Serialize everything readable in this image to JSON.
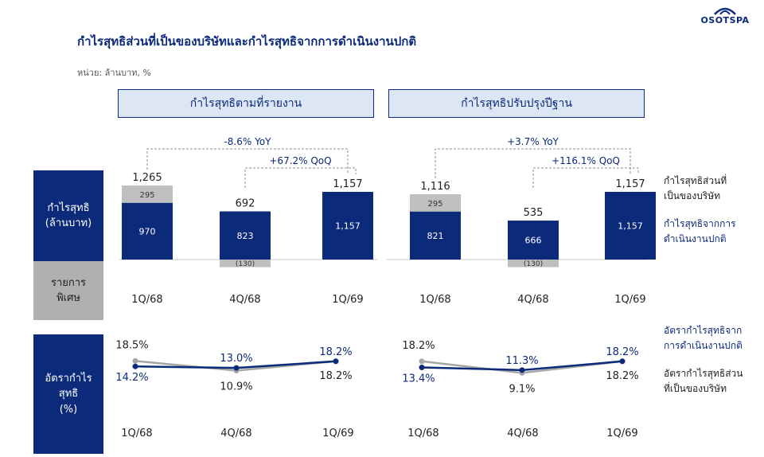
{
  "logo": "OSOTSPA",
  "title": "กำไรสุทธิส่วนที่เป็นของบริษัทและกำไรสุทธิจากการดำเนินงานปกติ",
  "unit_label": "หน่วย: ล้านบาท, %",
  "panels": {
    "reported": "กำไรสุทธิตามที่รายงาน",
    "normalized": "กำไรสุทธิปรับปรุงปีฐาน"
  },
  "side_labels": {
    "net_profit": "กำไรสุทธิ\n(ล้านบาท)",
    "special_items": "รายการ\nพิเศษ",
    "margin": "อัตรากำไร\nสุทธิ\n(%)"
  },
  "legend": {
    "net_profit_company": "กำไรสุทธิส่วนที่\nเป็นของบริษัท",
    "net_profit_operations": "กำไรสุทธิจากการ\nดำเนินงานปกติ",
    "margin_operations": "อัตรากำไรสุทธิจาก\nการดำเนินงานปกติ",
    "margin_company": "อัตรากำไรสุทธิส่วน\nที่เป็นของบริษัท"
  },
  "colors": {
    "navy": "#0b2a7a",
    "gray": "#bfbfbf",
    "panel_fill": "#dde6f4"
  },
  "chart_data": [
    {
      "type": "bar",
      "panel": "กำไรสุทธิตามที่รายงาน",
      "categories": [
        "1Q/68",
        "4Q/68",
        "1Q/69"
      ],
      "series": [
        {
          "name": "กำไรสุทธิจากการดำเนินงานปกติ",
          "values": [
            970,
            823,
            1157
          ]
        },
        {
          "name": "รายการพิเศษ",
          "values": [
            295,
            -130,
            0
          ]
        }
      ],
      "totals": [
        "1,265",
        "692",
        "1,157"
      ],
      "value_labels": [
        "970",
        "823",
        "1,157"
      ],
      "special_labels": [
        "295",
        "(130)",
        ""
      ],
      "annotations": {
        "yoy": "-8.6% YoY",
        "qoq": "+67.2% QoQ"
      }
    },
    {
      "type": "bar",
      "panel": "กำไรสุทธิปรับปรุงปีฐาน",
      "categories": [
        "1Q/68",
        "4Q/68",
        "1Q/69"
      ],
      "series": [
        {
          "name": "กำไรสุทธิจากการดำเนินงานปกติ",
          "values": [
            821,
            666,
            1157
          ]
        },
        {
          "name": "รายการพิเศษ",
          "values": [
            295,
            -130,
            0
          ]
        }
      ],
      "totals": [
        "1,116",
        "535",
        "1,157"
      ],
      "value_labels": [
        "821",
        "666",
        "1,157"
      ],
      "special_labels": [
        "295",
        "(130)",
        ""
      ],
      "annotations": {
        "yoy": "+3.7% YoY",
        "qoq": "+116.1% QoQ"
      }
    },
    {
      "type": "line",
      "panel": "กำไรสุทธิตามที่รายงาน",
      "categories": [
        "1Q/68",
        "4Q/68",
        "1Q/69"
      ],
      "series": [
        {
          "name": "อัตรากำไรสุทธิจากการดำเนินงานปกติ",
          "values": [
            14.2,
            13.0,
            18.2
          ],
          "labels": [
            "14.2%",
            "13.0%",
            "18.2%"
          ]
        },
        {
          "name": "อัตรากำไรสุทธิส่วนที่เป็นของบริษัท",
          "values": [
            18.5,
            10.9,
            18.2
          ],
          "labels": [
            "18.5%",
            "10.9%",
            "18.2%"
          ]
        }
      ]
    },
    {
      "type": "line",
      "panel": "กำไรสุทธิปรับปรุงปีฐาน",
      "categories": [
        "1Q/68",
        "4Q/68",
        "1Q/69"
      ],
      "series": [
        {
          "name": "อัตรากำไรสุทธิจากการดำเนินงานปกติ",
          "values": [
            13.4,
            11.3,
            18.2
          ],
          "labels": [
            "13.4%",
            "11.3%",
            "18.2%"
          ]
        },
        {
          "name": "อัตรากำไรสุทธิส่วนที่เป็นของบริษัท",
          "values": [
            18.2,
            9.1,
            18.2
          ],
          "labels": [
            "18.2%",
            "9.1%",
            "18.2%"
          ]
        }
      ]
    }
  ]
}
